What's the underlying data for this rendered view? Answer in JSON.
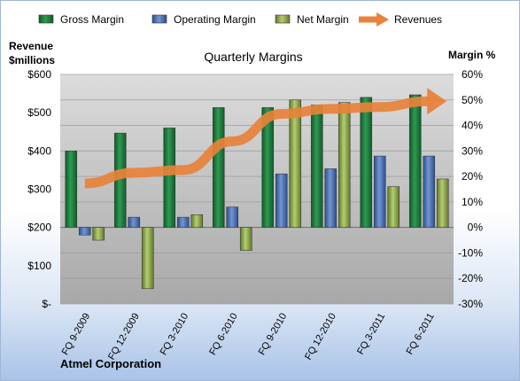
{
  "chart_data": {
    "type": "bar",
    "title": "Quarterly Margins",
    "company": "Atmel Corporation",
    "left_axis_label_line1": "Revenue",
    "left_axis_label_line2": "$millions",
    "right_axis_label": "Margin %",
    "categories": [
      "FQ 9-2009",
      "FQ 12-2009",
      "FQ 3-2010",
      "FQ 6-2010",
      "FQ 9-2010",
      "FQ 12-2010",
      "FQ 3-2011",
      "FQ 6-2011"
    ],
    "left_ticks": [
      "$-",
      "$100",
      "$200",
      "$300",
      "$400",
      "$500",
      "$600"
    ],
    "right_ticks": [
      "-30%",
      "-20%",
      "-10%",
      "0%",
      "10%",
      "20%",
      "30%",
      "40%",
      "50%",
      "60%"
    ],
    "ylim_left": [
      0,
      600
    ],
    "ylim_right": [
      -30,
      60
    ],
    "legend_position": "top",
    "series": [
      {
        "name": "Gross Margin",
        "axis": "right",
        "kind": "bar",
        "color": "#1e7a3c",
        "values": [
          30,
          37,
          39,
          47,
          47,
          48,
          51,
          52
        ]
      },
      {
        "name": "Operating Margin",
        "axis": "right",
        "kind": "bar",
        "color": "#4f73b3",
        "values": [
          -3,
          4,
          4,
          8,
          21,
          23,
          28,
          28
        ]
      },
      {
        "name": "Net Margin",
        "axis": "right",
        "kind": "bar",
        "color": "#8fa94a",
        "values": [
          -5,
          -24,
          5,
          -9,
          50,
          49,
          16,
          19
        ]
      },
      {
        "name": "Revenues",
        "axis": "left",
        "kind": "line",
        "color": "#e8823a",
        "values": [
          315,
          343,
          350,
          425,
          497,
          510,
          515,
          530
        ]
      }
    ]
  }
}
